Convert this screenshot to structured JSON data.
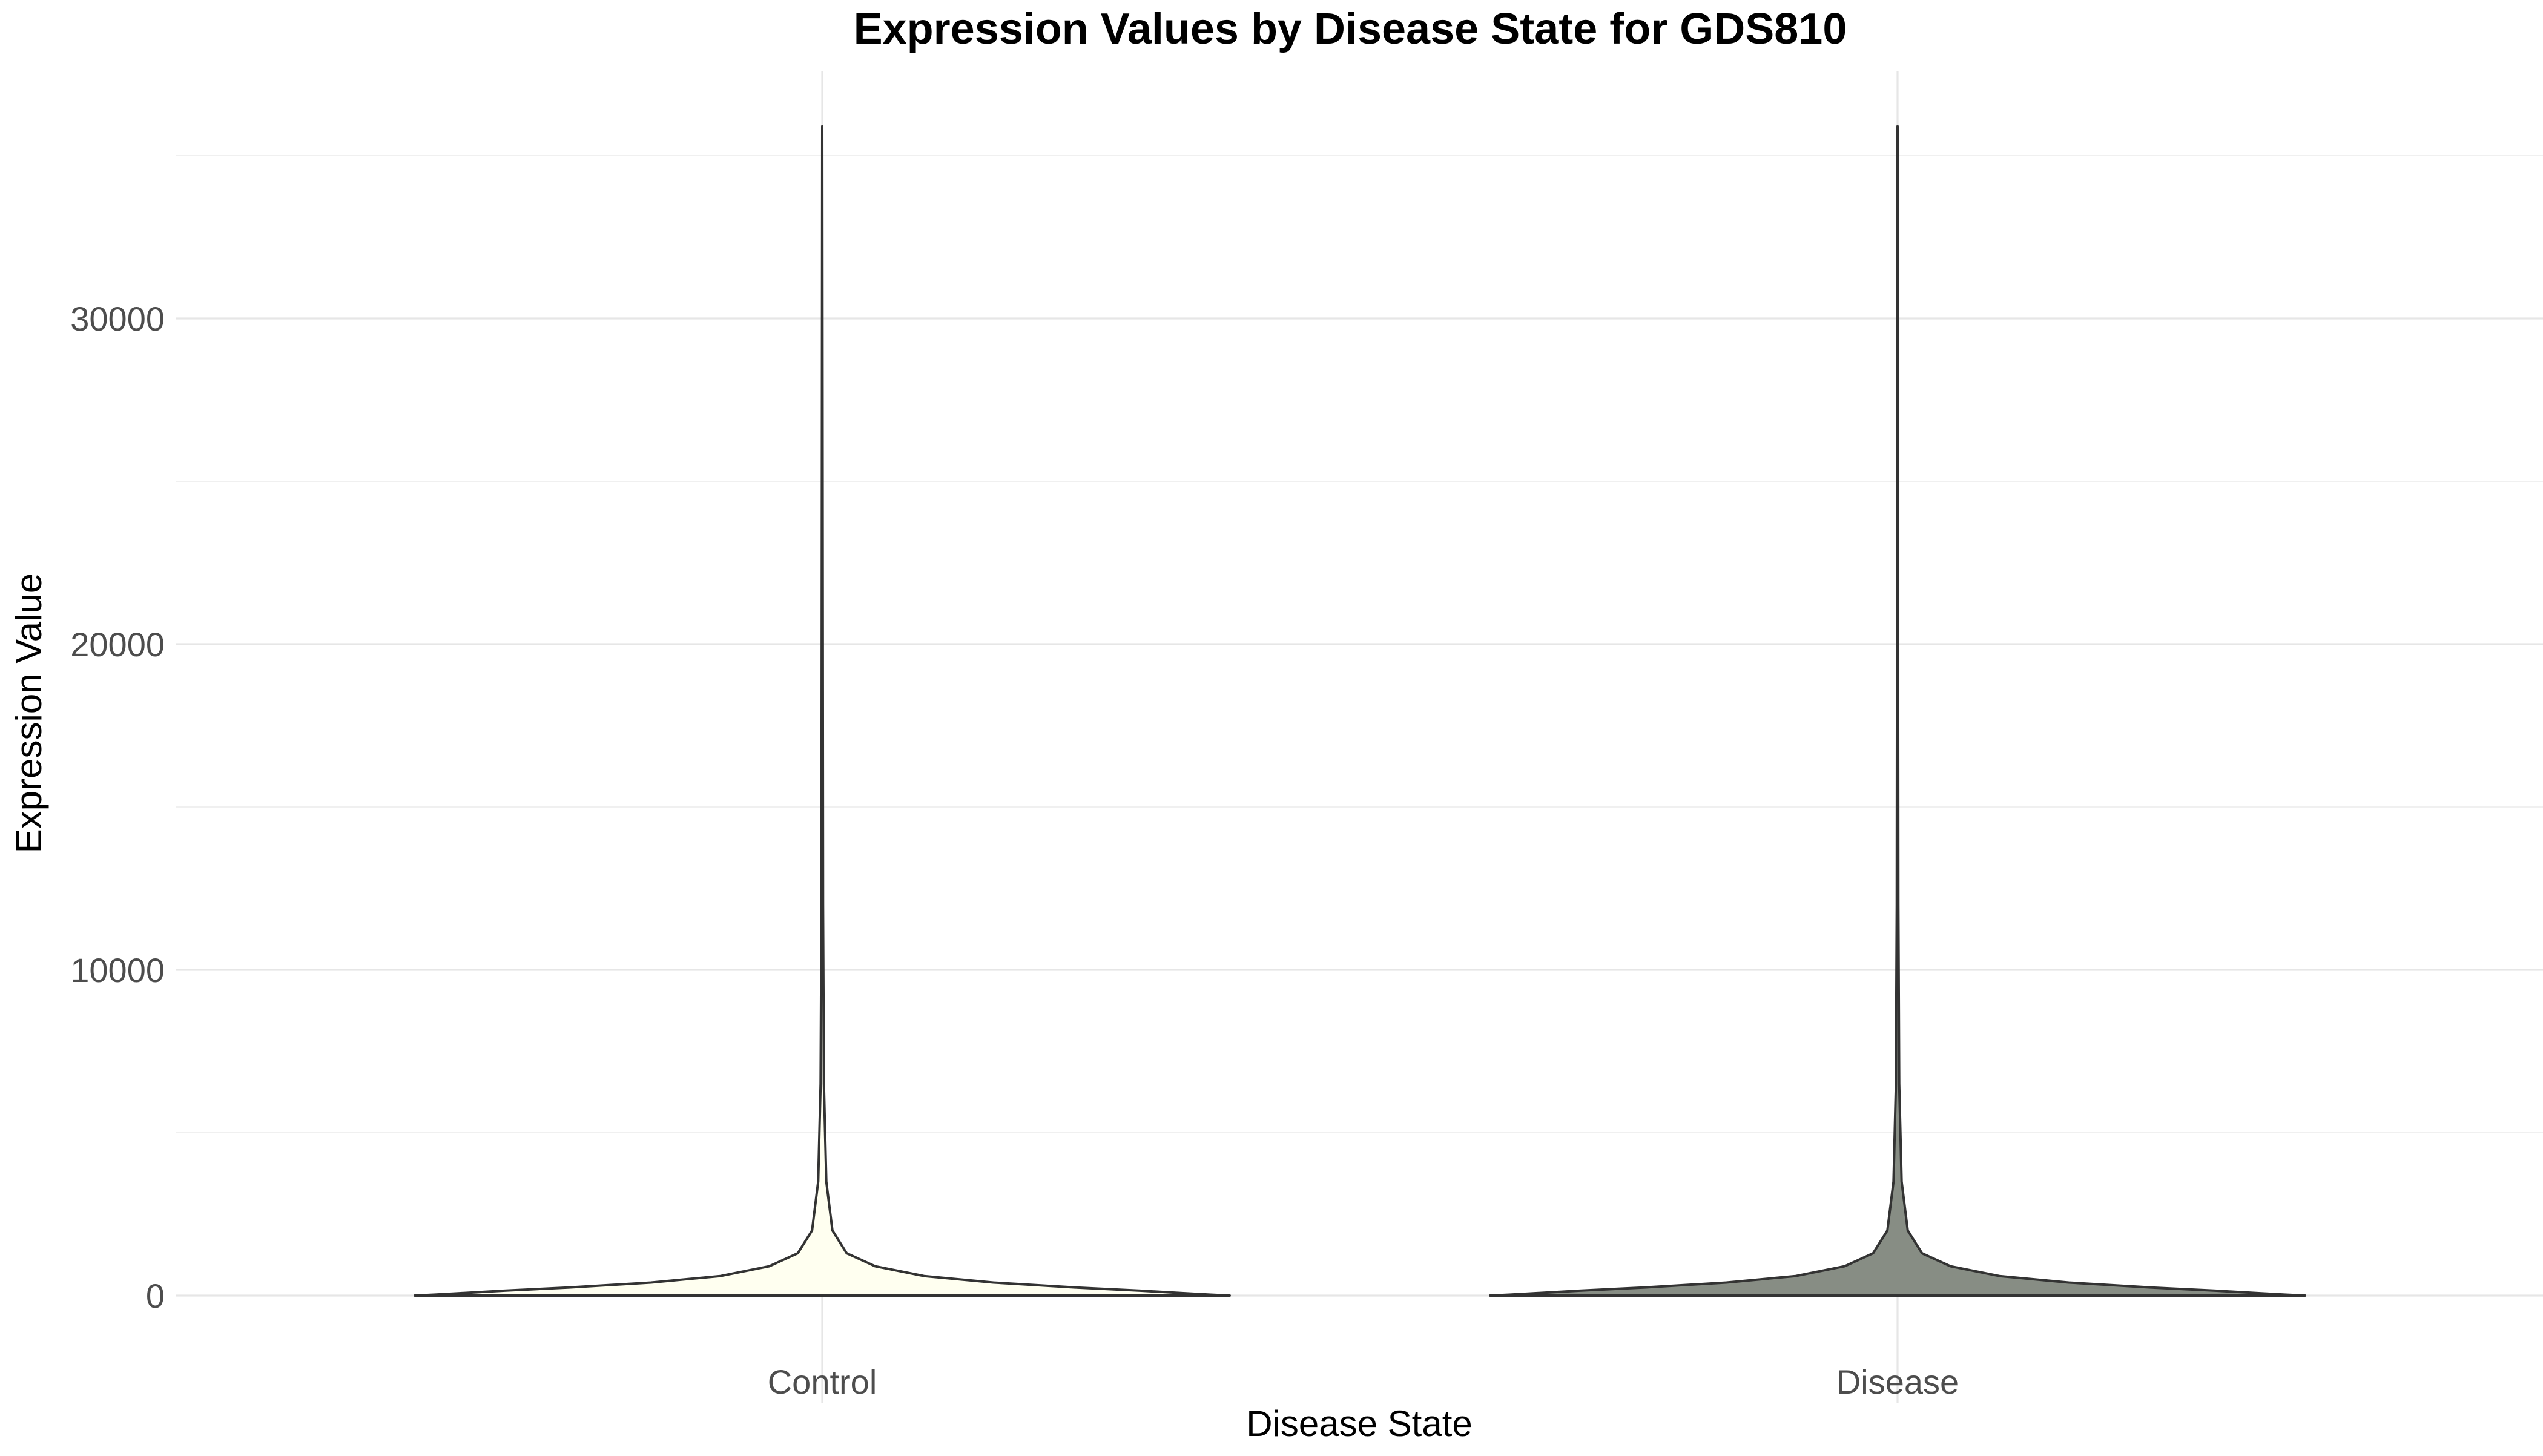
{
  "chart_data": {
    "type": "violin",
    "title": "Expression Values by Disease State for GDS810",
    "xlabel": "Disease State",
    "ylabel": "Expression Value",
    "categories": [
      "Control",
      "Disease"
    ],
    "ylim": [
      -1800,
      36000
    ],
    "y_ticks": [
      0,
      10000,
      20000,
      30000
    ],
    "y_tick_labels": [
      "0",
      "10000",
      "20000",
      "30000"
    ],
    "grid": true,
    "legend": "none",
    "series": [
      {
        "category": "Control",
        "fill": "#FFFFF0",
        "min": 0,
        "max": 35900,
        "profile": [
          {
            "y": 0,
            "w": 1.0
          },
          {
            "y": 30,
            "w": 0.95
          },
          {
            "y": 80,
            "w": 0.88
          },
          {
            "y": 150,
            "w": 0.78
          },
          {
            "y": 250,
            "w": 0.62
          },
          {
            "y": 400,
            "w": 0.42
          },
          {
            "y": 600,
            "w": 0.25
          },
          {
            "y": 900,
            "w": 0.13
          },
          {
            "y": 1300,
            "w": 0.06
          },
          {
            "y": 2000,
            "w": 0.025
          },
          {
            "y": 3500,
            "w": 0.01
          },
          {
            "y": 6500,
            "w": 0.004
          },
          {
            "y": 12000,
            "w": 0.002
          },
          {
            "y": 35900,
            "w": 0.0
          }
        ]
      },
      {
        "category": "Disease",
        "fill": "#878D84",
        "min": 0,
        "max": 35900,
        "profile": [
          {
            "y": 0,
            "w": 1.0
          },
          {
            "y": 30,
            "w": 0.95
          },
          {
            "y": 80,
            "w": 0.88
          },
          {
            "y": 150,
            "w": 0.78
          },
          {
            "y": 250,
            "w": 0.62
          },
          {
            "y": 400,
            "w": 0.42
          },
          {
            "y": 600,
            "w": 0.25
          },
          {
            "y": 900,
            "w": 0.13
          },
          {
            "y": 1300,
            "w": 0.06
          },
          {
            "y": 2000,
            "w": 0.025
          },
          {
            "y": 3500,
            "w": 0.01
          },
          {
            "y": 6500,
            "w": 0.004
          },
          {
            "y": 12000,
            "w": 0.002
          },
          {
            "y": 35900,
            "w": 0.0
          }
        ]
      }
    ]
  }
}
